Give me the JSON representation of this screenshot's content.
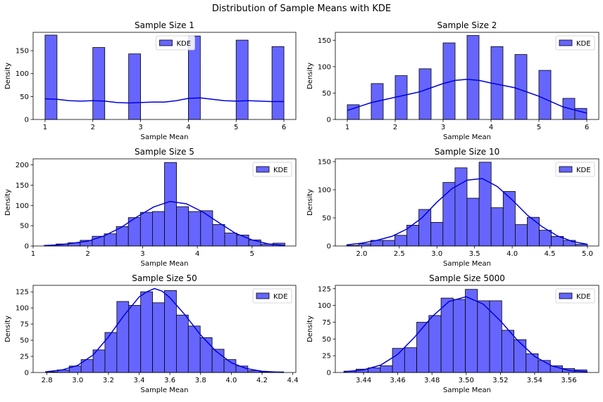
{
  "figure": {
    "suptitle": "Distribution of Sample Means with KDE"
  },
  "colors": {
    "bar_fill": "#6666ff",
    "bar_edge": "#000000",
    "kde_line": "#0000dd"
  },
  "chart_data": [
    {
      "type": "bar",
      "title": "Sample Size 1",
      "xlabel": "Sample Mean",
      "ylabel": "Density",
      "legend": "KDE",
      "legend_position": "top-center",
      "xlim": [
        0.75,
        6.25
      ],
      "ylim": [
        0,
        190
      ],
      "xticks": [
        1,
        2,
        3,
        4,
        5,
        6
      ],
      "xtick_labels": [
        "1",
        "2",
        "3",
        "4",
        "5",
        "6"
      ],
      "yticks": [
        0,
        50,
        100,
        150
      ],
      "ytick_labels": [
        "0",
        "50",
        "100",
        "150"
      ],
      "bins": [
        {
          "x0": 1.0,
          "x1": 1.25,
          "value": 184
        },
        {
          "x0": 2.0,
          "x1": 2.25,
          "value": 157
        },
        {
          "x0": 2.75,
          "x1": 3.0,
          "value": 143
        },
        {
          "x0": 4.0,
          "x1": 4.25,
          "value": 182
        },
        {
          "x0": 5.0,
          "x1": 5.25,
          "value": 173
        },
        {
          "x0": 5.75,
          "x1": 6.0,
          "value": 159
        }
      ],
      "kde": {
        "x": [
          1.0,
          1.25,
          1.5,
          1.75,
          2.0,
          2.25,
          2.5,
          2.75,
          3.0,
          3.25,
          3.5,
          3.75,
          4.0,
          4.25,
          4.5,
          4.75,
          5.0,
          5.25,
          5.5,
          5.75,
          6.0
        ],
        "y": [
          45,
          44,
          41,
          40,
          41,
          40,
          37,
          36,
          37,
          38,
          38,
          41,
          46,
          47,
          44,
          41,
          40,
          41,
          40,
          39,
          39
        ]
      }
    },
    {
      "type": "bar",
      "title": "Sample Size 2",
      "xlabel": "Sample Mean",
      "ylabel": "Density",
      "legend": "KDE",
      "legend_position": "top-right",
      "xlim": [
        0.75,
        6.25
      ],
      "ylim": [
        0,
        165
      ],
      "xticks": [
        1,
        2,
        3,
        4,
        5,
        6
      ],
      "xtick_labels": [
        "1",
        "2",
        "3",
        "4",
        "5",
        "6"
      ],
      "yticks": [
        0,
        50,
        100,
        150
      ],
      "ytick_labels": [
        "0",
        "50",
        "100",
        "150"
      ],
      "bins": [
        {
          "x0": 1.0,
          "x1": 1.25,
          "value": 28
        },
        {
          "x0": 1.5,
          "x1": 1.75,
          "value": 68
        },
        {
          "x0": 2.0,
          "x1": 2.25,
          "value": 83
        },
        {
          "x0": 2.5,
          "x1": 2.75,
          "value": 96
        },
        {
          "x0": 3.0,
          "x1": 3.25,
          "value": 145
        },
        {
          "x0": 3.5,
          "x1": 3.75,
          "value": 159
        },
        {
          "x0": 4.0,
          "x1": 4.25,
          "value": 138
        },
        {
          "x0": 4.5,
          "x1": 4.75,
          "value": 123
        },
        {
          "x0": 5.0,
          "x1": 5.25,
          "value": 93
        },
        {
          "x0": 5.5,
          "x1": 5.75,
          "value": 40
        },
        {
          "x0": 5.75,
          "x1": 6.0,
          "value": 21
        }
      ],
      "kde": {
        "x": [
          1.0,
          1.5,
          2.0,
          2.5,
          3.0,
          3.25,
          3.5,
          3.75,
          4.0,
          4.5,
          5.0,
          5.5,
          6.0
        ],
        "y": [
          17,
          32,
          42,
          52,
          68,
          74,
          76,
          74,
          69,
          60,
          44,
          24,
          12
        ]
      }
    },
    {
      "type": "bar",
      "title": "Sample Size 5",
      "xlabel": "Sample Mean",
      "ylabel": "Density",
      "legend": "KDE",
      "legend_position": "top-right",
      "xlim": [
        1.0,
        5.8
      ],
      "ylim": [
        0,
        215
      ],
      "xticks": [
        1,
        2,
        3,
        4,
        5
      ],
      "xtick_labels": [
        "1",
        "2",
        "3",
        "4",
        "5"
      ],
      "yticks": [
        0,
        50,
        100,
        150,
        200
      ],
      "ytick_labels": [
        "0",
        "50",
        "100",
        "150",
        "200"
      ],
      "bin_start": 1.2,
      "bin_width": 0.22,
      "values": [
        1,
        5,
        8,
        14,
        24,
        30,
        48,
        70,
        83,
        85,
        206,
        97,
        85,
        87,
        53,
        32,
        27,
        15,
        5,
        7
      ],
      "kde": {
        "x": [
          1.2,
          1.5,
          2.0,
          2.3,
          2.6,
          2.9,
          3.2,
          3.5,
          3.8,
          4.1,
          4.4,
          4.7,
          5.0,
          5.3,
          5.6
        ],
        "y": [
          1,
          3,
          12,
          25,
          45,
          72,
          96,
          110,
          104,
          84,
          57,
          31,
          15,
          5,
          1
        ]
      }
    },
    {
      "type": "bar",
      "title": "Sample Size 10",
      "xlabel": "Sample Mean",
      "ylabel": "Density",
      "legend": "KDE",
      "legend_position": "top-right",
      "xlim": [
        1.65,
        5.15
      ],
      "ylim": [
        0,
        155
      ],
      "xticks": [
        2.0,
        2.5,
        3.0,
        3.5,
        4.0,
        4.5,
        5.0
      ],
      "xtick_labels": [
        "2.0",
        "2.5",
        "3.0",
        "3.5",
        "4.0",
        "4.5",
        "5.0"
      ],
      "yticks": [
        0,
        50,
        100,
        150
      ],
      "ytick_labels": [
        "0",
        "50",
        "100",
        "150"
      ],
      "bin_start": 1.8,
      "bin_width": 0.16,
      "values": [
        1,
        4,
        10,
        10,
        19,
        37,
        65,
        42,
        113,
        139,
        85,
        149,
        68,
        97,
        38,
        51,
        28,
        17,
        10,
        3
      ],
      "kde": {
        "x": [
          1.8,
          2.0,
          2.2,
          2.4,
          2.6,
          2.8,
          3.0,
          3.2,
          3.4,
          3.6,
          3.8,
          4.0,
          4.2,
          4.4,
          4.6,
          4.8,
          5.0
        ],
        "y": [
          2,
          5,
          10,
          17,
          30,
          50,
          78,
          102,
          117,
          120,
          106,
          82,
          55,
          34,
          18,
          8,
          3
        ]
      }
    },
    {
      "type": "bar",
      "title": "Sample Size 50",
      "xlabel": "Sample Mean",
      "ylabel": "Density",
      "legend": "KDE",
      "legend_position": "top-right",
      "xlim": [
        2.71,
        4.42
      ],
      "ylim": [
        0,
        135
      ],
      "xticks": [
        2.8,
        3.0,
        3.2,
        3.4,
        3.6,
        3.8,
        4.0,
        4.2,
        4.4
      ],
      "xtick_labels": [
        "2.8",
        "3.0",
        "3.2",
        "3.4",
        "3.6",
        "3.8",
        "4.0",
        "4.2",
        "4.4"
      ],
      "yticks": [
        0,
        25,
        50,
        75,
        100,
        125
      ],
      "ytick_labels": [
        "0",
        "25",
        "50",
        "75",
        "100",
        "125"
      ],
      "bin_start": 2.79,
      "bin_width": 0.0775,
      "values": [
        1,
        4,
        10,
        20,
        35,
        62,
        110,
        104,
        125,
        108,
        127,
        89,
        72,
        54,
        36,
        20,
        10,
        3,
        1,
        1
      ],
      "kde": {
        "x": [
          2.79,
          2.9,
          3.0,
          3.1,
          3.2,
          3.3,
          3.4,
          3.45,
          3.5,
          3.55,
          3.6,
          3.7,
          3.8,
          3.9,
          4.0,
          4.1,
          4.2,
          4.34
        ],
        "y": [
          1,
          4,
          11,
          27,
          55,
          88,
          117,
          125,
          130,
          126,
          116,
          89,
          58,
          33,
          15,
          6,
          2,
          0
        ]
      }
    },
    {
      "type": "bar",
      "title": "Sample Size 5000",
      "xlabel": "Sample Mean",
      "ylabel": "Density",
      "legend": "KDE",
      "legend_position": "top-right",
      "xlim": [
        3.4235,
        3.5775
      ],
      "ylim": [
        0,
        130
      ],
      "xticks": [
        3.44,
        3.46,
        3.48,
        3.5,
        3.52,
        3.54,
        3.56
      ],
      "xtick_labels": [
        "3.44",
        "3.46",
        "3.48",
        "3.50",
        "3.52",
        "3.54",
        "3.56"
      ],
      "yticks": [
        0,
        25,
        50,
        75,
        100,
        125
      ],
      "ytick_labels": [
        "0",
        "25",
        "50",
        "75",
        "100",
        "125"
      ],
      "bin_start": 3.4285,
      "bin_width": 0.0071,
      "values": [
        2,
        5,
        7,
        10,
        36,
        37,
        75,
        85,
        111,
        109,
        124,
        107,
        107,
        63,
        49,
        28,
        18,
        10,
        6,
        4
      ],
      "kde": {
        "x": [
          3.4285,
          3.44,
          3.45,
          3.46,
          3.47,
          3.48,
          3.49,
          3.5,
          3.51,
          3.52,
          3.53,
          3.54,
          3.55,
          3.56,
          3.571
        ],
        "y": [
          1,
          4,
          11,
          27,
          53,
          83,
          106,
          113,
          102,
          77,
          48,
          24,
          10,
          3,
          1
        ]
      }
    }
  ]
}
